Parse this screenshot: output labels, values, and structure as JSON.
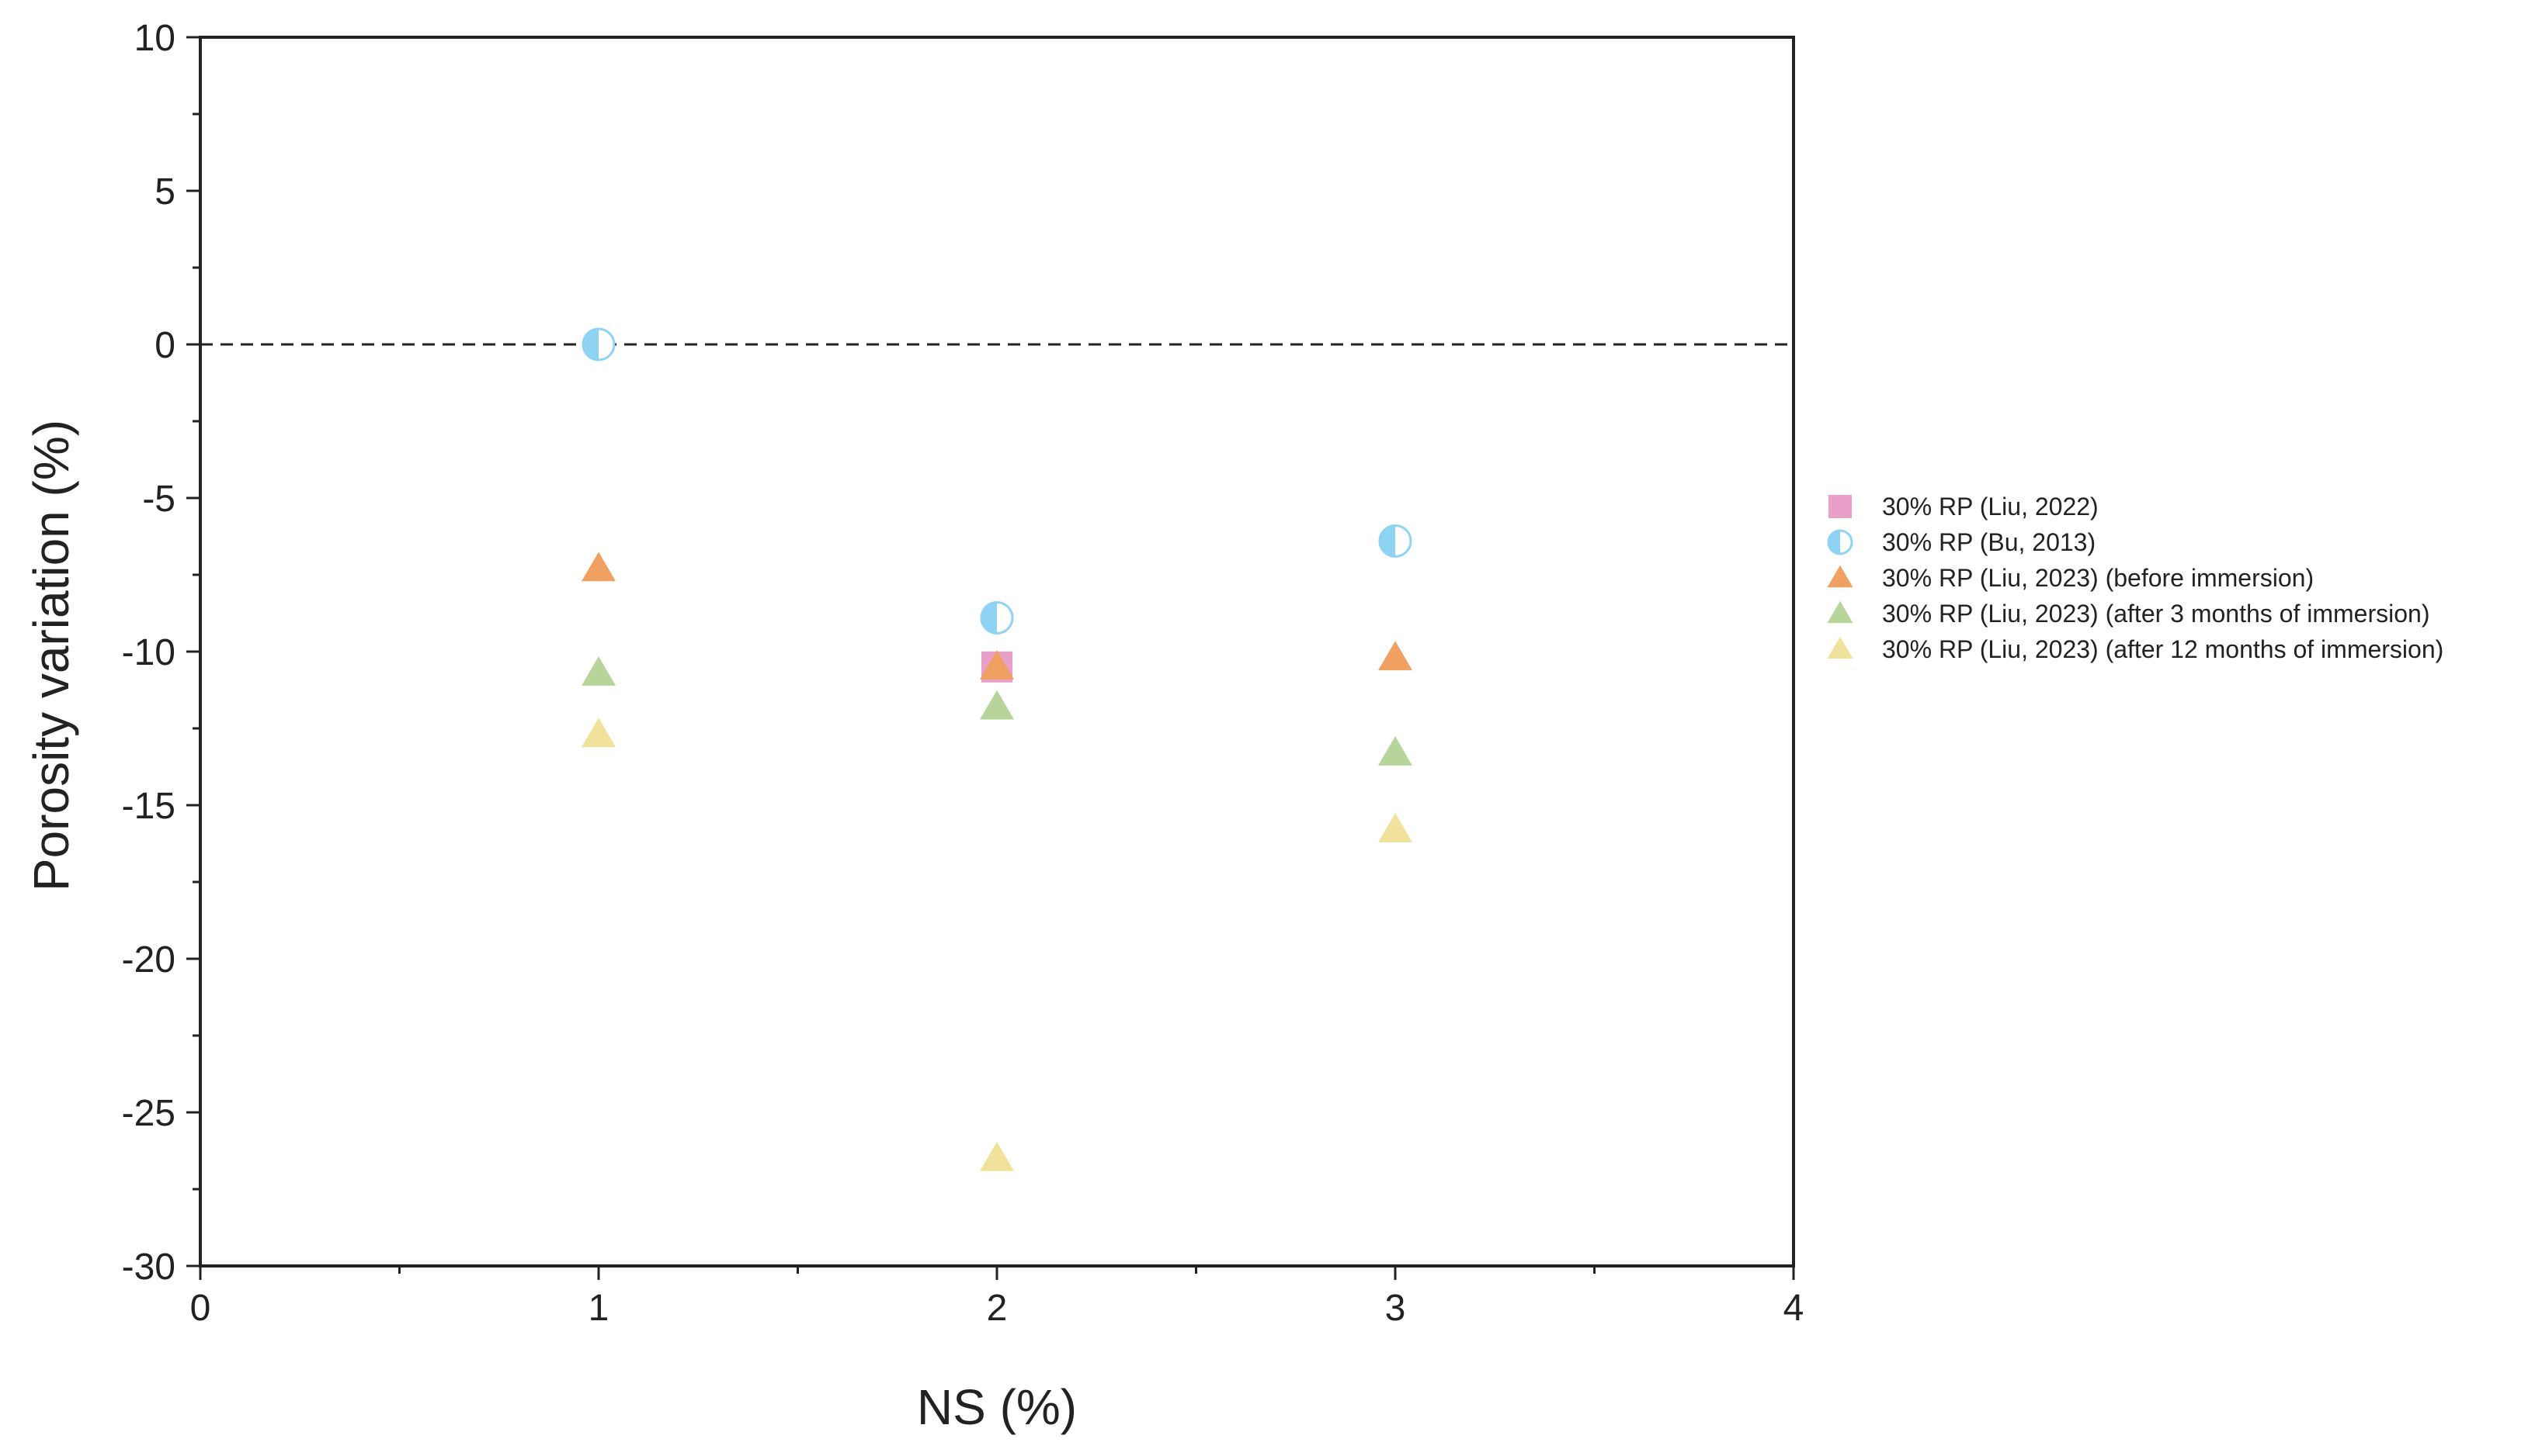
{
  "chart_data": {
    "type": "scatter",
    "title": "",
    "xlabel": "NS (%)",
    "ylabel": "Porosity variation (%)",
    "xlim": [
      0,
      4
    ],
    "ylim": [
      -30,
      10
    ],
    "x_ticks": [
      0,
      1,
      2,
      3,
      4
    ],
    "y_ticks": [
      10,
      5,
      0,
      -5,
      -10,
      -15,
      -20,
      -25,
      -30
    ],
    "x_minor_step": 0.5,
    "y_minor_step": 2.5,
    "reference_line": {
      "y": 0,
      "style": "dashed",
      "color": "#222222"
    },
    "grid": false,
    "legend_position": "right",
    "series": [
      {
        "name": "30% RP (Liu, 2022)",
        "marker": "square",
        "color": "#e8a0c8",
        "x": [
          2
        ],
        "y": [
          -10.5
        ]
      },
      {
        "name": "30% RP (Bu, 2013)",
        "marker": "half-circle",
        "color": "#8fd3f4",
        "x": [
          1,
          2,
          3
        ],
        "y": [
          0,
          -8.9,
          -6.4
        ]
      },
      {
        "name": "30% RP (Liu, 2023) (before immersion)",
        "marker": "triangle",
        "color": "#f0a060",
        "x": [
          1,
          2,
          3
        ],
        "y": [
          -7.3,
          -10.5,
          -10.2
        ]
      },
      {
        "name": "30% RP (Liu, 2023) (after 3 months of immersion)",
        "marker": "triangle",
        "color": "#b7d49a",
        "x": [
          1,
          2,
          3
        ],
        "y": [
          -10.7,
          -11.8,
          -13.3
        ]
      },
      {
        "name": "30% RP (Liu, 2023) (after 12 months of immersion)",
        "marker": "triangle",
        "color": "#f0e29a",
        "x": [
          1,
          2,
          3
        ],
        "y": [
          -12.7,
          -26.5,
          -15.8
        ]
      }
    ]
  }
}
